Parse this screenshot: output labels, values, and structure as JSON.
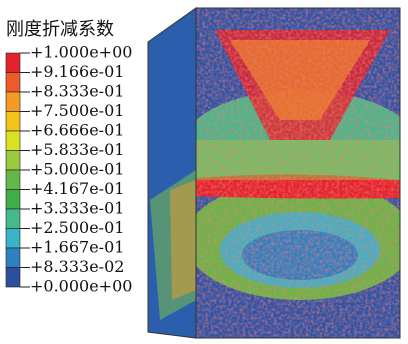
{
  "legend": {
    "title": "刚度折减系数",
    "labels": [
      "+1.000e+00",
      "+9.166e-01",
      "+8.333e-01",
      "+7.500e-01",
      "+6.666e-01",
      "+5.833e-01",
      "+5.000e-01",
      "+4.167e-01",
      "+3.333e-01",
      "+2.500e-01",
      "+1.667e-01",
      "+8.333e-02",
      "+0.000e+00"
    ],
    "colors": [
      "#e3232b",
      "#ee5a2a",
      "#f39a22",
      "#f2c41c",
      "#dbe022",
      "#9acb3c",
      "#63b847",
      "#3fae4a",
      "#44b98c",
      "#3bb3c6",
      "#2f80c1",
      "#2c4f9e"
    ]
  }
}
